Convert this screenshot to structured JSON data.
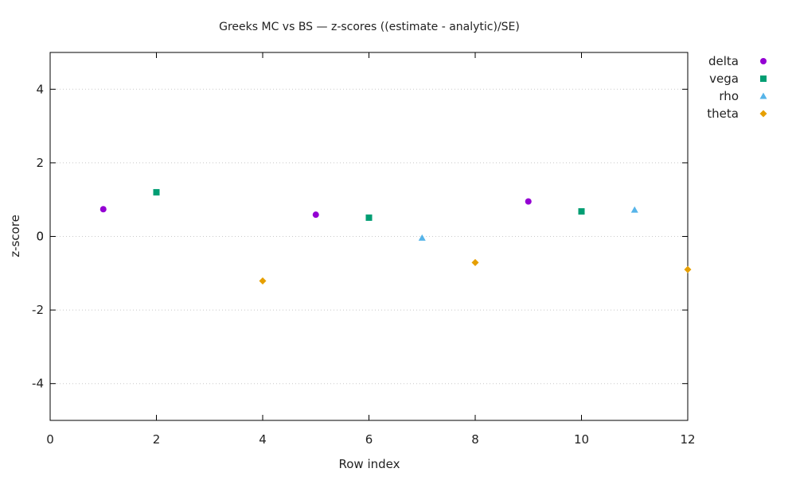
{
  "chart_data": {
    "type": "scatter",
    "title": "Greeks MC vs BS — z-scores ((estimate - analytic)/SE)",
    "xlabel": "Row index",
    "ylabel": "z-score",
    "xlim": [
      0,
      12
    ],
    "ylim": [
      -5,
      5
    ],
    "xticks": [
      0,
      2,
      4,
      6,
      8,
      10,
      12
    ],
    "yticks": [
      -4,
      -2,
      0,
      2,
      4
    ],
    "grid": "horizontal dotted",
    "legend_placement": "outside-top-right",
    "series": [
      {
        "name": "delta",
        "marker": "circle",
        "color": "#9400d3",
        "points": [
          [
            1,
            0.74
          ],
          [
            5,
            0.59
          ],
          [
            9,
            0.95
          ]
        ]
      },
      {
        "name": "vega",
        "marker": "square",
        "color": "#009e73",
        "points": [
          [
            2,
            1.2
          ],
          [
            6,
            0.51
          ],
          [
            10,
            0.68
          ]
        ]
      },
      {
        "name": "rho",
        "marker": "triangle",
        "color": "#56b4e9",
        "points": [
          [
            7,
            -0.04
          ],
          [
            11,
            0.72
          ]
        ]
      },
      {
        "name": "theta",
        "marker": "diamond",
        "color": "#e69f00",
        "points": [
          [
            4,
            -1.21
          ],
          [
            8,
            -0.71
          ],
          [
            12,
            -0.9
          ]
        ]
      }
    ]
  }
}
